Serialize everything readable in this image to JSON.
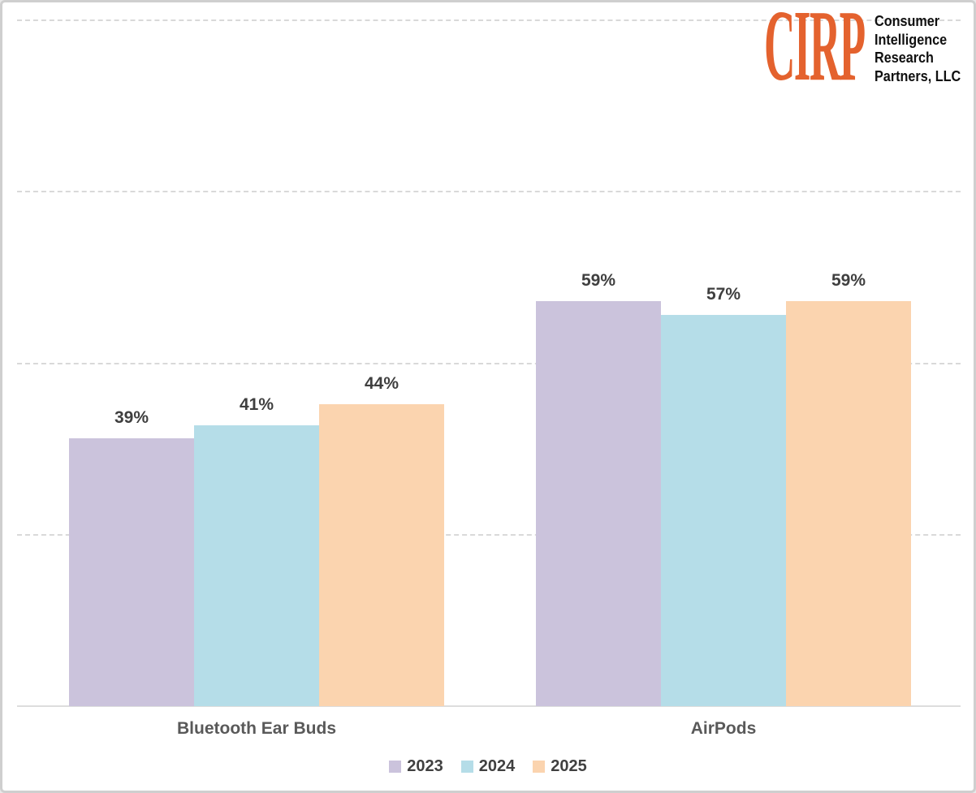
{
  "logo": {
    "brand": "CIRP",
    "brand_color": "#E4622E",
    "company_lines": [
      "Consumer",
      "Intelligence",
      "Research",
      "Partners, LLC"
    ]
  },
  "chart_data": {
    "type": "bar",
    "title": "",
    "categories": [
      "Bluetooth Ear Buds",
      "AirPods"
    ],
    "series": [
      {
        "name": "2023",
        "color": "#CBC3DC",
        "values": [
          39,
          59
        ]
      },
      {
        "name": "2024",
        "color": "#B5DDE8",
        "values": [
          41,
          57
        ]
      },
      {
        "name": "2025",
        "color": "#FBD4AF",
        "values": [
          44,
          59
        ]
      }
    ],
    "value_suffix": "%",
    "ylim": [
      0,
      100
    ],
    "gridline_values": [
      25,
      50,
      75,
      100
    ],
    "grid_style": "dashed",
    "legend_position": "bottom",
    "data_label_color": "#3F3F3F",
    "category_label_color": "#595959",
    "gridline_color": "#D9D9D9",
    "axis_line_color": "#DDDDDD"
  }
}
